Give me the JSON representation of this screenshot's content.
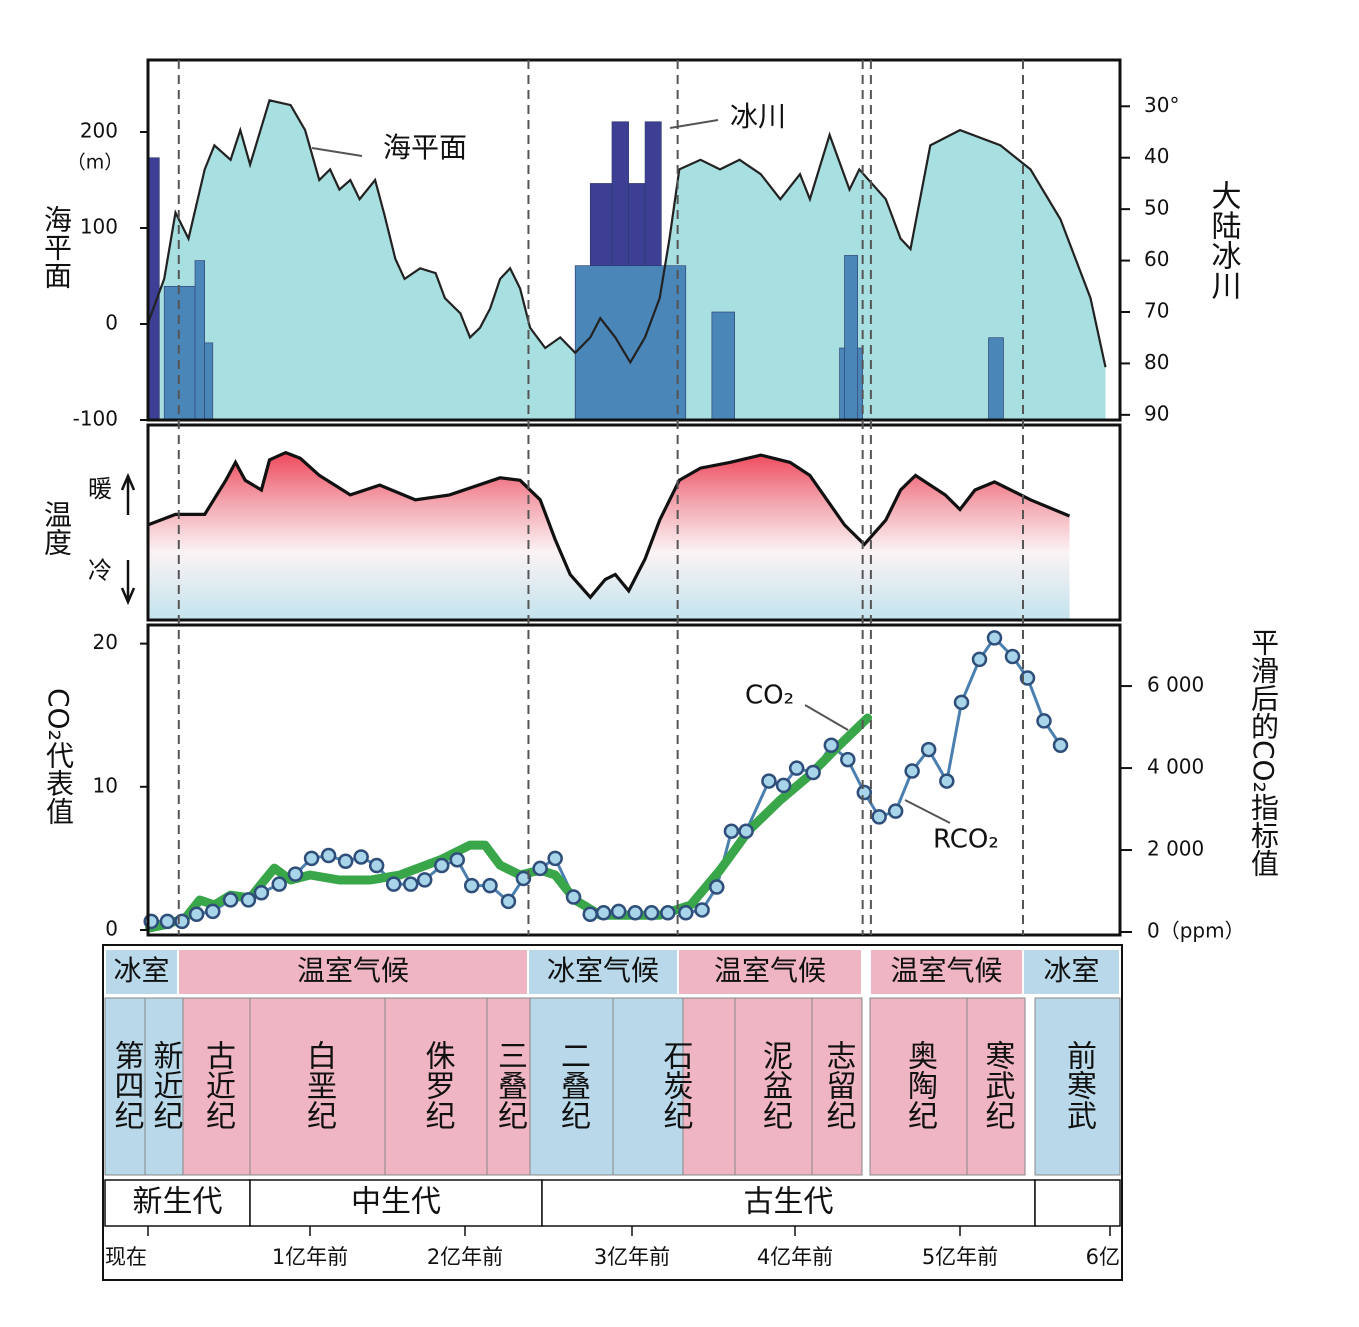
{
  "chart_data": [
    {
      "type": "sea-level",
      "ylabel": "海平面",
      "yunit": "（m）",
      "y2label": "大陆冰川",
      "annotations": [
        "海平面",
        "冰川"
      ],
      "ylim": [
        -100,
        275
      ],
      "yticks": [
        200,
        100,
        0,
        -100
      ],
      "y2lim": [
        91,
        21
      ],
      "y2ticks": [
        {
          "value": 30,
          "label": "30°"
        },
        40,
        50,
        60,
        70,
        80,
        90
      ],
      "x": [
        0,
        0.1,
        0.17,
        0.25,
        0.35,
        0.41,
        0.51,
        0.57,
        0.63,
        0.75,
        0.88,
        0.97,
        1.06,
        1.13,
        1.19,
        1.26,
        1.32,
        1.42,
        1.48,
        1.55,
        1.61,
        1.71,
        1.81,
        1.87,
        1.97,
        2.03,
        2.09,
        2.15,
        2.21,
        2.27,
        2.33,
        2.39,
        2.48,
        2.57,
        2.66,
        2.75,
        2.81,
        2.9,
        2.99,
        3.08,
        3.17,
        3.23,
        3.29,
        3.42,
        3.54,
        3.66,
        3.79,
        3.91,
        4.03,
        4.09,
        4.21,
        4.33,
        4.39,
        4.55,
        4.64,
        4.7,
        4.82,
        5,
        5.27,
        5.47,
        5.67,
        5.87,
        5.97
      ],
      "values": [
        1,
        47,
        116,
        89,
        161,
        186,
        171,
        202,
        166,
        233,
        228,
        202,
        150,
        161,
        140,
        150,
        130,
        150,
        114,
        68,
        47,
        58,
        53,
        27,
        11,
        -14,
        -4,
        16,
        47,
        58,
        37,
        -4,
        -25,
        -14,
        -30,
        -14,
        6,
        -14,
        -40,
        -14,
        27,
        89,
        161,
        171,
        161,
        171,
        156,
        130,
        156,
        130,
        197,
        140,
        161,
        130,
        89,
        78,
        186,
        202,
        186,
        161,
        109,
        27,
        -45
      ],
      "color": "#a8dfe0",
      "line_color": "#222",
      "bars": [
        {
          "color": "#3d3f95",
          "axis": "y2",
          "x0": [
            0,
            2.66,
            2.75,
            2.88,
            2.98,
            3.08
          ],
          "x1": [
            0.07,
            2.75,
            2.88,
            2.98,
            3.08,
            3.18
          ],
          "values": [
            40,
            61,
            45,
            33,
            45,
            33
          ]
        },
        {
          "color": "#4a86b8",
          "axis": "y2",
          "x0": [
            0.1,
            0.29,
            0.35,
            2.66,
            3.49,
            4.27,
            4.3,
            5.19
          ],
          "x1": [
            0.35,
            0.35,
            0.4,
            3.33,
            3.63,
            4.41,
            4.38,
            5.29
          ],
          "values": [
            65,
            60,
            76,
            61,
            70,
            77,
            59,
            75
          ]
        }
      ]
    },
    {
      "type": "temperature",
      "ylabel": "温度",
      "ylim": [
        -0.6,
        1.8
      ],
      "yticks": [
        {
          "value": 1,
          "label": "暖"
        },
        {
          "value": 0,
          "label": "冷"
        }
      ],
      "x": [
        0,
        0.17,
        0.35,
        0.48,
        0.54,
        0.6,
        0.7,
        0.75,
        0.85,
        0.94,
        1.06,
        1.26,
        1.45,
        1.68,
        1.9,
        2.21,
        2.33,
        2.45,
        2.54,
        2.63,
        2.75,
        2.84,
        2.9,
        2.98,
        3.08,
        3.17,
        3.29,
        3.42,
        3.6,
        3.79,
        3.97,
        4.09,
        4.3,
        4.42,
        4.55,
        4.64,
        4.73,
        4.91,
        5,
        5.1,
        5.23,
        5.47,
        5.73
      ],
      "values": [
        0.57,
        0.7,
        0.7,
        1.12,
        1.34,
        1.12,
        1,
        1.37,
        1.46,
        1.39,
        1.18,
        0.94,
        1.06,
        0.88,
        0.94,
        1.15,
        1.12,
        0.88,
        0.39,
        -0.04,
        -0.32,
        -0.1,
        -0.04,
        -0.24,
        0.15,
        0.63,
        1.12,
        1.27,
        1.34,
        1.43,
        1.34,
        1.18,
        0.57,
        0.33,
        0.63,
        1,
        1.18,
        0.94,
        0.76,
        1,
        1.1,
        0.88,
        0.68
      ],
      "line_color": "#111"
    },
    {
      "type": "co2",
      "ylabel": "CO₂代表值",
      "y2label": "平滑后的CO₂指标值",
      "ylim": [
        -0.35,
        21.3
      ],
      "yticks": [
        0,
        10,
        20
      ],
      "y2lim": [
        -73,
        7490
      ],
      "y2ticks": [
        {
          "value": 0,
          "label": "0（ppm）"
        },
        {
          "value": 2000,
          "label": "2 000"
        },
        {
          "value": 4000,
          "label": "4 000"
        },
        {
          "value": 6000,
          "label": "6 000"
        }
      ],
      "series": [
        {
          "name": "RCO₂",
          "color": "#4a7fb0",
          "x": [
            0.02,
            0.12,
            0.21,
            0.3,
            0.4,
            0.51,
            0.62,
            0.7,
            0.81,
            0.91,
            1.01,
            1.12,
            1.23,
            1.33,
            1.43,
            1.54,
            1.65,
            1.74,
            1.85,
            1.95,
            2.04,
            2.15,
            2.26,
            2.35,
            2.45,
            2.54,
            2.65,
            2.75,
            2.83,
            2.92,
            3.02,
            3.12,
            3.22,
            3.33,
            3.43,
            3.52,
            3.61,
            3.7,
            3.84,
            3.93,
            4.01,
            4.11,
            4.22,
            4.32,
            4.42,
            4.51,
            4.61,
            4.71,
            4.81,
            4.92,
            5.01,
            5.13,
            5.23,
            5.35,
            5.45,
            5.56,
            5.67
          ],
          "values": [
            0.6,
            0.6,
            0.6,
            1.1,
            1.3,
            2.1,
            2.1,
            2.6,
            3.2,
            3.9,
            5,
            5.2,
            4.8,
            5.1,
            4.5,
            3.2,
            3.2,
            3.5,
            4.5,
            4.9,
            3.1,
            3.1,
            2,
            3.6,
            4.3,
            5,
            2.3,
            1.1,
            1.2,
            1.3,
            1.2,
            1.2,
            1.2,
            1.2,
            1.4,
            3,
            6.9,
            6.9,
            10.4,
            10.1,
            11.3,
            11,
            12.9,
            11.9,
            9.6,
            7.9,
            8.3,
            11.1,
            12.6,
            10.4,
            15.9,
            18.9,
            20.4,
            19.1,
            17.6,
            14.6,
            12.9
          ]
        },
        {
          "name": "CO₂",
          "color": "#3aa64a",
          "axis": "y2",
          "x": [
            0.01,
            0.1,
            0.23,
            0.32,
            0.41,
            0.51,
            0.63,
            0.72,
            0.78,
            0.88,
            1,
            1.19,
            1.39,
            1.58,
            1.84,
            2.03,
            2.12,
            2.21,
            2.33,
            2.45,
            2.54,
            2.66,
            2.81,
            2.99,
            3.17,
            3.36,
            3.54,
            3.72,
            3.91,
            4.09,
            4.27,
            4.44
          ],
          "values": [
            100,
            170,
            340,
            780,
            660,
            900,
            830,
            1270,
            1560,
            1270,
            1390,
            1270,
            1270,
            1390,
            1760,
            2120,
            2120,
            1630,
            1390,
            1510,
            1390,
            780,
            410,
            410,
            410,
            660,
            1510,
            2490,
            3220,
            3830,
            4560,
            5220
          ]
        }
      ]
    }
  ],
  "time_axis": {
    "xlim": [
      0,
      6
    ],
    "xticks": [
      {
        "value": 0,
        "label": "现在"
      },
      {
        "value": 1,
        "label": "1亿年前"
      },
      {
        "value": 2,
        "label": "2亿年前"
      },
      {
        "value": 3,
        "label": "3亿年前"
      },
      {
        "value": 4,
        "label": "4亿年前"
      },
      {
        "value": 5,
        "label": "5亿年前"
      },
      {
        "value": 6,
        "label": "6亿"
      }
    ]
  },
  "boundaries": [
    0.19,
    2.38,
    3.28,
    4.41,
    4.46,
    5.42
  ],
  "timeline": {
    "climate": [
      {
        "label": "冰室",
        "color": "#b9d9ea"
      },
      {
        "label": "温室气候",
        "color": "#f0b5c3"
      },
      {
        "label": "冰室气候",
        "color": "#b9d9ea"
      },
      {
        "label": "温室气候",
        "color": "#f0b5c3"
      },
      {
        "label": "温室气候",
        "color": "#f0b5c3"
      },
      {
        "label": "冰室",
        "color": "#b9d9ea"
      }
    ],
    "periods": [
      {
        "label": "第四纪",
        "color": "#b9d9ea"
      },
      {
        "label": "新近纪",
        "color": "#b9d9ea"
      },
      {
        "label": "古近纪",
        "color": "#f0b5c3"
      },
      {
        "label": "白垩纪",
        "color": "#f0b5c3"
      },
      {
        "label": "侏罗纪",
        "color": "#f0b5c3"
      },
      {
        "label": "三叠纪",
        "color": "#f0b5c3"
      },
      {
        "label": "二叠纪",
        "color": "#b9d9ea"
      },
      {
        "label": "石炭纪",
        "color": [
          "#b9d9ea",
          "#f0b5c3"
        ]
      },
      {
        "label": "泥盆纪",
        "color": "#f0b5c3"
      },
      {
        "label": "志留纪",
        "color": "#f0b5c3"
      },
      {
        "label": "奥陶纪",
        "color": "#f0b5c3"
      },
      {
        "label": "寒武纪",
        "color": "#f0b5c3"
      },
      {
        "label": "前寒武",
        "color": "#b9d9ea"
      }
    ],
    "eras": [
      "新生代",
      "中生代",
      "古生代",
      null
    ]
  }
}
